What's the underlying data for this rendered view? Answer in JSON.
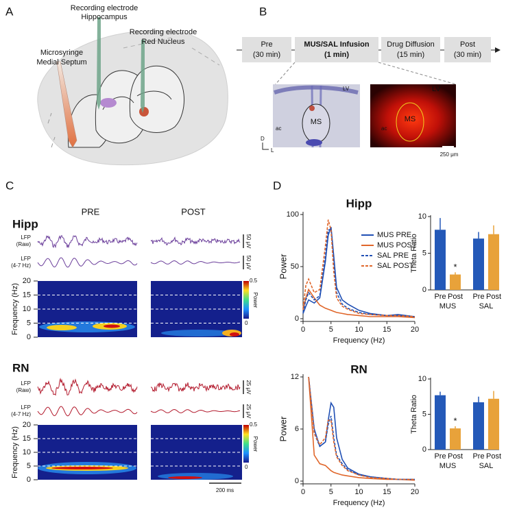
{
  "panel_labels": [
    "A",
    "B",
    "C",
    "D"
  ],
  "panel_a": {
    "labels": [
      {
        "text": "Recording electrode",
        "sub": "Hippocampus"
      },
      {
        "text": "Recording electrode",
        "sub": "Red Nucleus"
      },
      {
        "text": "Microsyringe",
        "sub": "Medial Septum"
      }
    ]
  },
  "panel_b": {
    "timeline": [
      {
        "label": "Pre",
        "duration": "(30 min)"
      },
      {
        "label": "MUS/SAL Infusion",
        "duration": "(1 min)"
      },
      {
        "label": "Drug Diffusion",
        "duration": "(15 min)"
      },
      {
        "label": "Post",
        "duration": "(30 min)"
      }
    ],
    "histology": {
      "lv": "LV",
      "ac": "ac",
      "ms": "MS",
      "dorsal": "D",
      "lateral": "L"
    },
    "fluorescence": {
      "lv": "LV",
      "ac": "ac",
      "ms": "MS",
      "scale": "250 μm"
    }
  },
  "panel_c": {
    "column_titles": [
      "PRE",
      "POST"
    ],
    "rows": [
      {
        "name": "Hipp",
        "raw_label": [
          "LFP",
          "(Raw)"
        ],
        "filtered_label": [
          "LFP",
          "(4-7 Hz)"
        ],
        "scale_bars": [
          "50 μV",
          "50 μV"
        ]
      },
      {
        "name": "RN",
        "raw_label": [
          "LFP",
          "(Raw)"
        ],
        "filtered_label": [
          "LFP",
          "(4-7 Hz)"
        ],
        "scale_bars": [
          "25 μV",
          "25 μV"
        ]
      }
    ],
    "ylabel": "Frequency (Hz)",
    "ylim": [
      0,
      20
    ],
    "yticks": [
      0,
      5,
      10,
      15,
      20
    ],
    "colorbar": {
      "max": 0.5,
      "min": 0,
      "label": "Power"
    },
    "time_scale": "200 ms"
  },
  "chart_data": [
    {
      "type": "line",
      "title": "Hipp",
      "title_color": "#7b3f9e",
      "x": [
        0,
        0.5,
        1,
        2,
        3,
        4,
        4.5,
        5,
        5.5,
        6,
        7,
        8,
        10,
        12,
        15,
        17,
        20
      ],
      "series": [
        {
          "name": "MUS PRE",
          "color": "#1f4fb4",
          "dashed": false,
          "values": [
            5,
            12,
            18,
            15,
            20,
            55,
            80,
            88,
            60,
            30,
            18,
            14,
            8,
            5,
            3,
            4,
            2
          ]
        },
        {
          "name": "MUS POST",
          "color": "#e0662a",
          "dashed": false,
          "values": [
            8,
            20,
            28,
            20,
            13,
            10,
            9,
            8,
            7,
            6,
            5,
            4,
            3,
            2,
            2,
            2,
            1
          ]
        },
        {
          "name": "SAL PRE",
          "color": "#1f4fb4",
          "dashed": true,
          "values": [
            6,
            18,
            25,
            18,
            22,
            60,
            85,
            86,
            55,
            25,
            14,
            10,
            6,
            4,
            3,
            3,
            2
          ]
        },
        {
          "name": "SAL POST",
          "color": "#e0662a",
          "dashed": true,
          "values": [
            10,
            32,
            38,
            25,
            28,
            70,
            95,
            85,
            45,
            20,
            12,
            9,
            5,
            4,
            3,
            3,
            2
          ]
        }
      ],
      "xlim": [
        0,
        20
      ],
      "xticks": [
        0,
        5,
        10,
        15,
        20
      ],
      "ylim": [
        0,
        100
      ],
      "yticks": [
        0,
        50,
        100
      ],
      "xlabel": "Frequency (Hz)",
      "ylabel": "Power",
      "legend": "upper right"
    },
    {
      "type": "bar",
      "categories": [
        "Pre",
        "Post",
        "Pre",
        "Post"
      ],
      "groups": [
        "MUS",
        "SAL"
      ],
      "values": [
        8.2,
        2.1,
        7.0,
        7.6
      ],
      "errors": [
        1.6,
        0.3,
        0.9,
        1.2
      ],
      "significance": [
        null,
        "*",
        null,
        null
      ],
      "colors": [
        "#2459b8",
        "#e8a23a",
        "#2459b8",
        "#e8a23a"
      ],
      "ylim": [
        0,
        10
      ],
      "yticks": [
        0,
        5,
        10
      ],
      "ylabel": "Theta Ratio"
    },
    {
      "type": "line",
      "title": "RN",
      "title_color": "#b2182b",
      "x": [
        0,
        0.5,
        1,
        2,
        3,
        4,
        4.5,
        5,
        5.5,
        6,
        7,
        8,
        10,
        12,
        15,
        17,
        20
      ],
      "series": [
        {
          "name": "MUS PRE",
          "color": "#1f4fb4",
          "dashed": false,
          "values": [
            null,
            null,
            12,
            6,
            4,
            4.5,
            7,
            9,
            8.5,
            5,
            2.5,
            1.5,
            0.8,
            0.5,
            0.3,
            0.2,
            0.2
          ]
        },
        {
          "name": "MUS POST",
          "color": "#e0662a",
          "dashed": false,
          "values": [
            null,
            null,
            12,
            3,
            2,
            1.8,
            1.5,
            1.2,
            1,
            0.9,
            0.7,
            0.6,
            0.4,
            0.3,
            0.2,
            0.2,
            0.1
          ]
        },
        {
          "name": "SAL PRE",
          "color": "#1f4fb4",
          "dashed": true,
          "values": [
            null,
            null,
            12,
            5.5,
            4,
            4.5,
            6.5,
            7.5,
            5,
            3,
            2,
            1.3,
            0.7,
            0.5,
            0.3,
            0.2,
            0.2
          ]
        },
        {
          "name": "SAL POST",
          "color": "#e0662a",
          "dashed": true,
          "values": [
            null,
            null,
            12,
            5.5,
            4.2,
            5,
            7,
            7,
            4.5,
            2.8,
            1.8,
            1.2,
            0.7,
            0.4,
            0.3,
            0.2,
            0.2
          ]
        }
      ],
      "xlim": [
        0,
        20
      ],
      "xticks": [
        0,
        5,
        10,
        15,
        20
      ],
      "ylim": [
        0,
        12
      ],
      "yticks": [
        0,
        6,
        12
      ],
      "xlabel": "Frequency (Hz)",
      "ylabel": "Power"
    },
    {
      "type": "bar",
      "categories": [
        "Pre",
        "Post",
        "Pre",
        "Post"
      ],
      "groups": [
        "MUS",
        "SAL"
      ],
      "values": [
        7.7,
        3.0,
        6.7,
        7.2
      ],
      "errors": [
        0.5,
        0.3,
        0.8,
        1.1
      ],
      "significance": [
        null,
        "*",
        null,
        null
      ],
      "colors": [
        "#2459b8",
        "#e8a23a",
        "#2459b8",
        "#e8a23a"
      ],
      "ylim": [
        0,
        10
      ],
      "yticks": [
        0,
        5,
        10
      ],
      "ylabel": "Theta Ratio"
    }
  ]
}
